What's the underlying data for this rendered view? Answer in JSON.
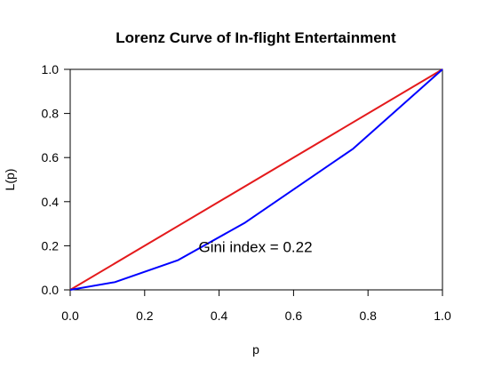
{
  "chart_data": {
    "type": "line",
    "title": "Lorenz Curve of In-flight Entertainment",
    "xlabel": "p",
    "ylabel": "L(p)",
    "xlim": [
      0,
      1
    ],
    "ylim": [
      0,
      1
    ],
    "xticks": [
      "0.0",
      "0.2",
      "0.4",
      "0.6",
      "0.8",
      "1.0"
    ],
    "yticks": [
      "0.0",
      "0.2",
      "0.4",
      "0.6",
      "0.8",
      "1.0"
    ],
    "grid": false,
    "annotation": {
      "text": "Gini index = 0.22",
      "x": 0.5,
      "y": 0.2
    },
    "series": [
      {
        "color": "#e41a1c",
        "x": [
          0,
          1
        ],
        "y": [
          0,
          1
        ]
      },
      {
        "color": "#0000ff",
        "x": [
          0,
          0.12,
          0.29,
          0.47,
          0.76,
          1.0
        ],
        "y": [
          0,
          0.035,
          0.135,
          0.305,
          0.64,
          1.0
        ]
      }
    ]
  }
}
